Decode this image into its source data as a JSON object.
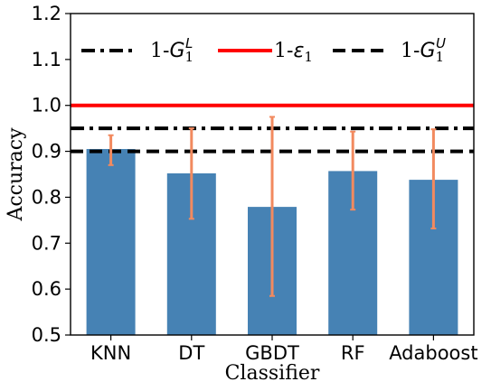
{
  "chart_data": {
    "type": "bar",
    "xlabel": "Classifier",
    "ylabel": "Accuracy",
    "categories": [
      "KNN",
      "DT",
      "GBDT",
      "RF",
      "Adaboost"
    ],
    "values": [
      0.905,
      0.852,
      0.779,
      0.857,
      0.838
    ],
    "error_low": [
      0.87,
      0.753,
      0.585,
      0.773,
      0.732
    ],
    "error_high": [
      0.935,
      0.95,
      0.975,
      0.943,
      0.948
    ],
    "ylim": [
      0.5,
      1.2
    ],
    "yticks": [
      "0.5",
      "0.6",
      "0.7",
      "0.8",
      "0.9",
      "1.0",
      "1.1",
      "1.2"
    ],
    "ytick_values": [
      0.5,
      0.6,
      0.7,
      0.8,
      0.9,
      1.0,
      1.1,
      1.2
    ],
    "reference_lines": [
      {
        "key": "GL",
        "value": 0.95,
        "style": "dashdot",
        "color": "#000000"
      },
      {
        "key": "eps",
        "value": 1.0,
        "style": "solid",
        "color": "#ff0000"
      },
      {
        "key": "GU",
        "value": 0.9,
        "style": "dashed",
        "color": "#000000"
      }
    ],
    "legend": [
      {
        "prefix": "1-",
        "symbol": "G",
        "sub": "1",
        "sup": "L",
        "style": "dashdot",
        "color": "#000000"
      },
      {
        "prefix": "1-",
        "symbol": "ε",
        "sub": "1",
        "sup": "",
        "style": "solid",
        "color": "#ff0000"
      },
      {
        "prefix": "1-",
        "symbol": "G",
        "sub": "1",
        "sup": "U",
        "style": "dashed",
        "color": "#000000"
      }
    ],
    "legend_position": "top",
    "grid": false,
    "bar_color": "#4682b4",
    "error_color": "#f28a5f"
  }
}
